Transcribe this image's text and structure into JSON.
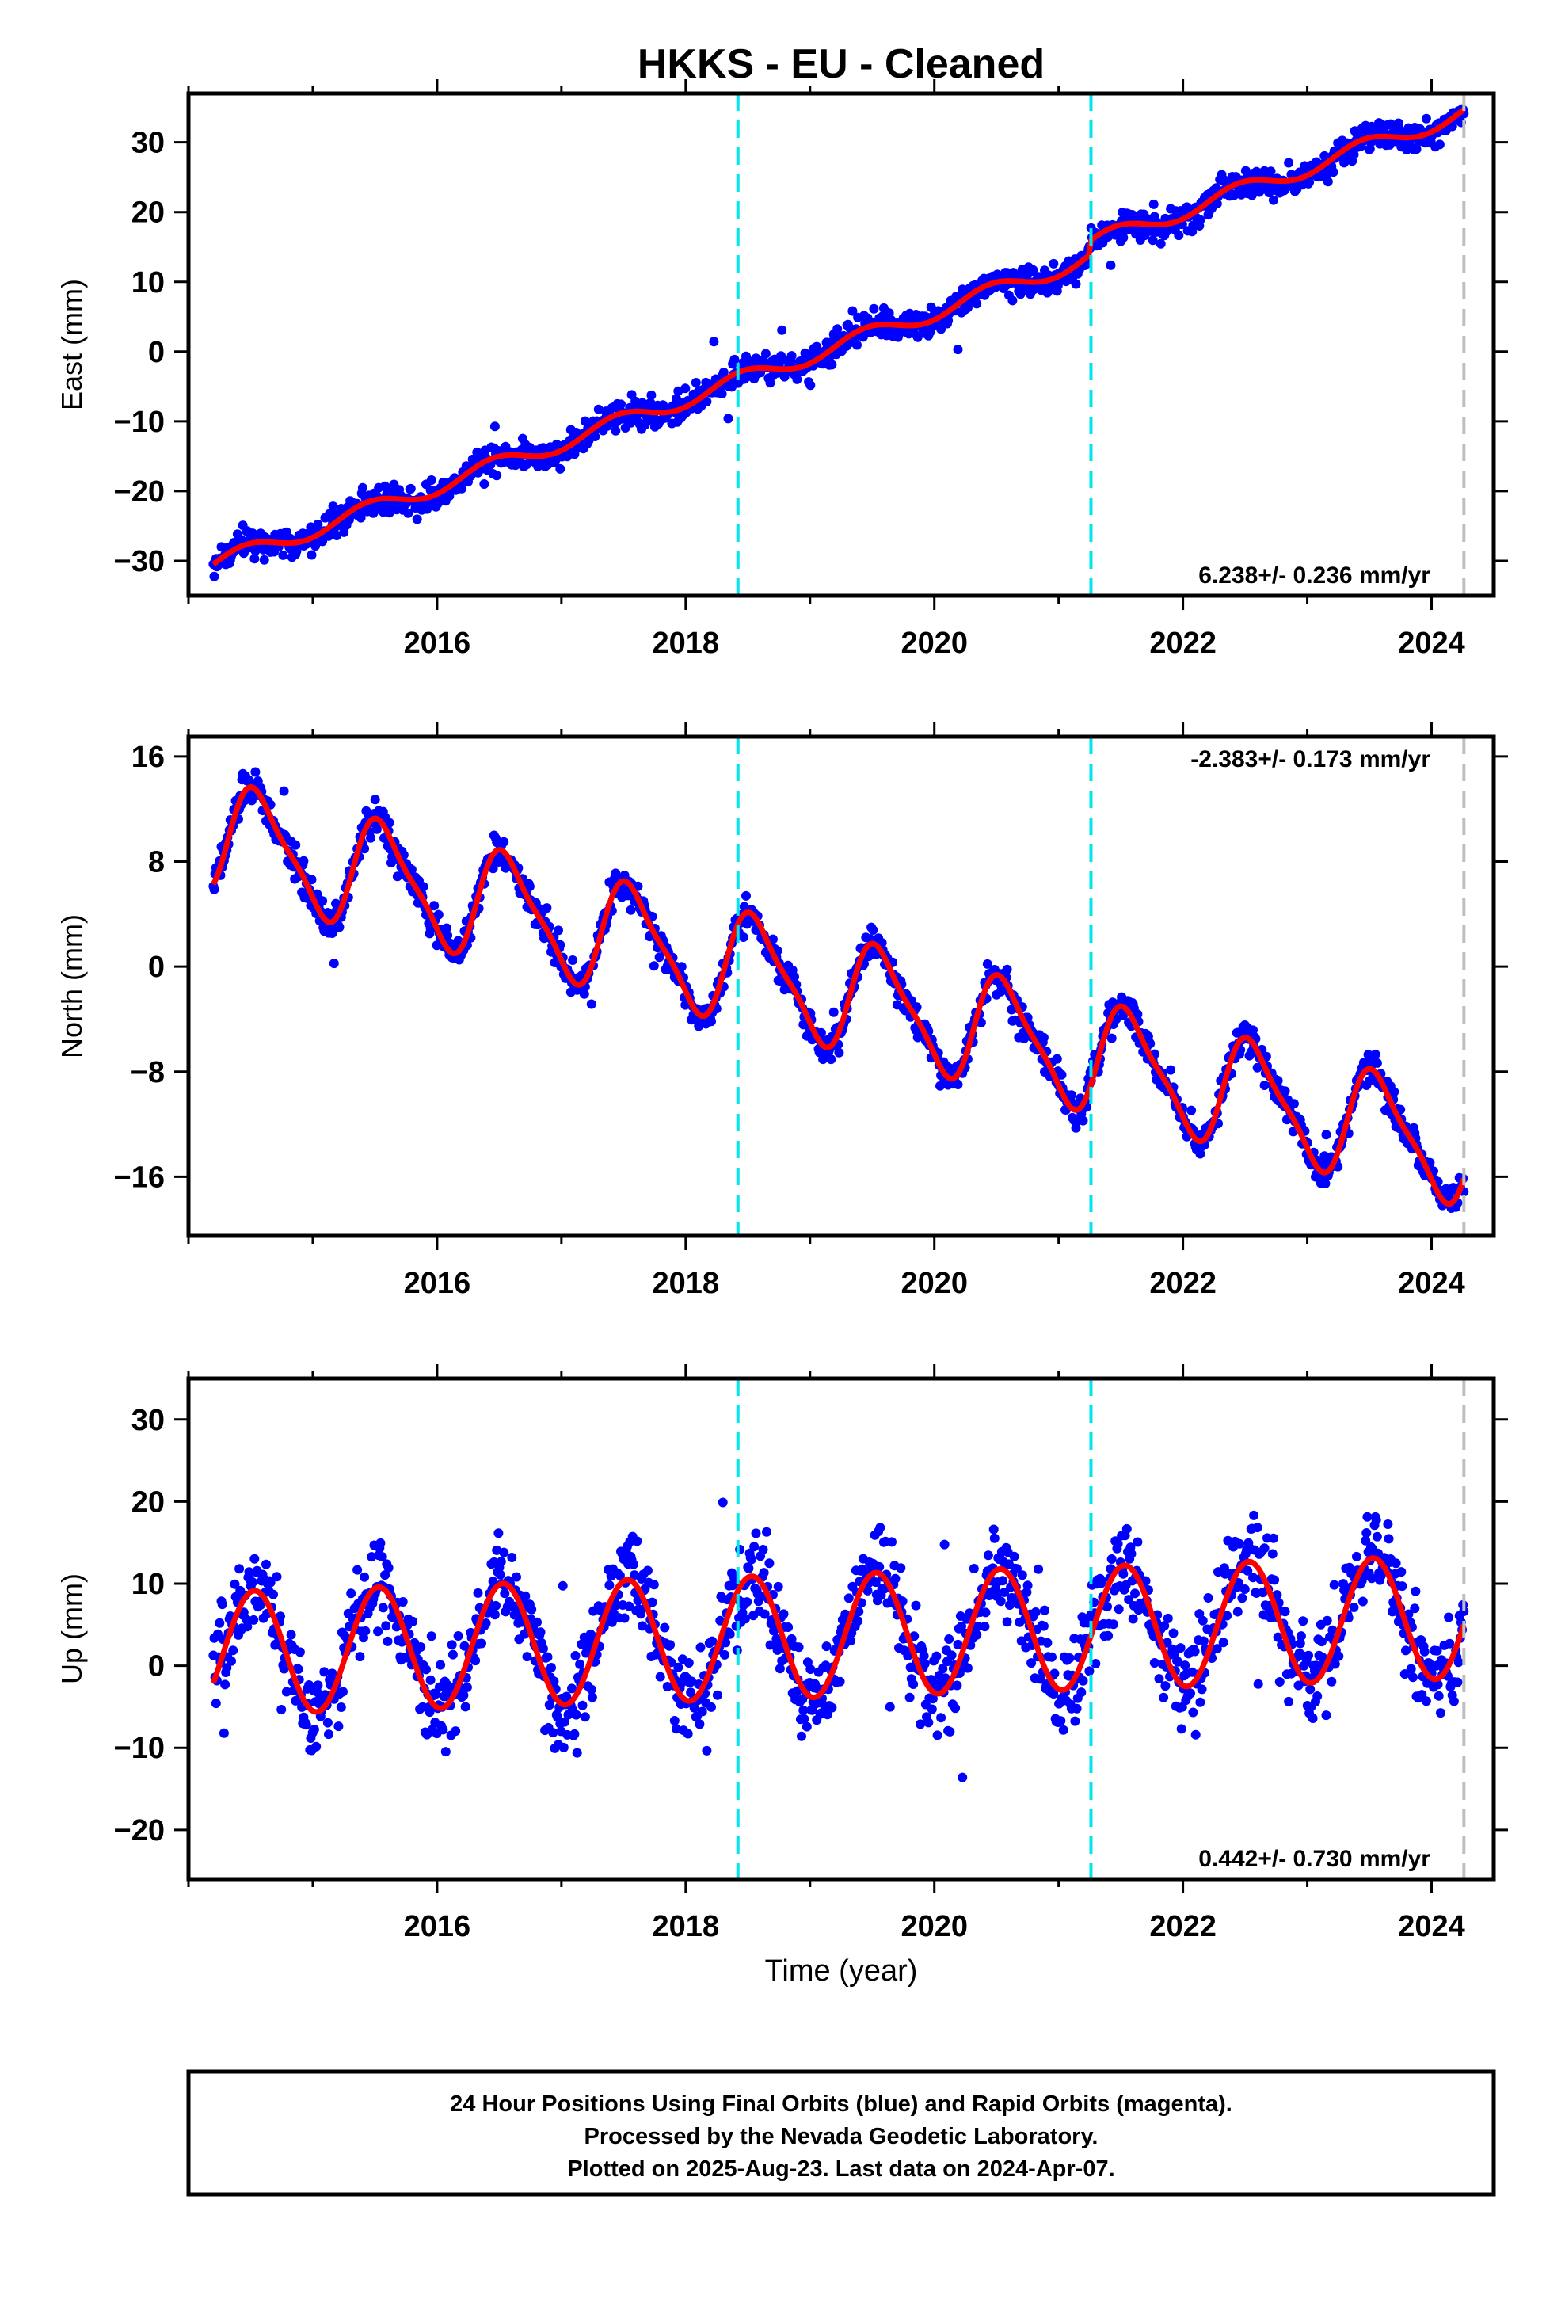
{
  "title": "HKKS  - EU - Cleaned",
  "xlabel": "Time (year)",
  "colors": {
    "final_orbits": "#0000ff",
    "model": "#ff0000",
    "break_line": "#00e5ee",
    "last_data_line": "#bebebe",
    "frame": "#000000"
  },
  "chart_data": [
    {
      "type": "scatter",
      "component": "East",
      "ylabel": "East (mm)",
      "rate_label": "6.238+/- 0.236 mm/yr",
      "rate_mm_per_yr": 6.238,
      "rate_sigma": 0.236,
      "xlim": [
        2014.0,
        2024.5
      ],
      "ylim": [
        -35,
        37
      ],
      "x_ticks": [
        2016,
        2018,
        2020,
        2022,
        2024
      ],
      "y_ticks": [
        -30,
        -20,
        -10,
        0,
        10,
        20,
        30
      ],
      "annual_amp": 1.2,
      "semiannual_amp": 0.0,
      "phase": 0.0,
      "scatter_sigma": 1.5,
      "offsets": [
        {
          "x": 2021.26,
          "dy": 2.0
        }
      ],
      "start_value": -30.5,
      "series": [
        {
          "name": "24 Hour Positions Using Final Orbits (blue)"
        },
        {
          "name": "Model"
        }
      ]
    },
    {
      "type": "scatter",
      "component": "North",
      "ylabel": "North (mm)",
      "rate_label": "-2.383+/- 0.173 mm/yr",
      "rate_mm_per_yr": -2.383,
      "rate_sigma": 0.173,
      "xlim": [
        2014.0,
        2024.5
      ],
      "ylim": [
        -20.5,
        17.5
      ],
      "x_ticks": [
        2016,
        2018,
        2020,
        2022,
        2024
      ],
      "y_ticks": [
        -16,
        -8,
        0,
        8,
        16
      ],
      "annual_amp": 4.0,
      "semiannual_amp": 1.0,
      "phase": 0.12,
      "scatter_sigma": 0.9,
      "offsets": [],
      "start_value": 10.0,
      "series": [
        {
          "name": "24 Hour Positions Using Final Orbits (blue)"
        },
        {
          "name": "Model"
        }
      ]
    },
    {
      "type": "scatter",
      "component": "Up",
      "ylabel": "Up (mm)",
      "rate_label": "0.442+/- 0.730 mm/yr",
      "rate_mm_per_yr": 0.442,
      "rate_sigma": 0.73,
      "xlim": [
        2014.0,
        2024.5
      ],
      "ylim": [
        -26,
        35
      ],
      "x_ticks": [
        2016,
        2018,
        2020,
        2022,
        2024
      ],
      "y_ticks": [
        -20,
        -10,
        0,
        10,
        20,
        30
      ],
      "annual_amp": 7.5,
      "semiannual_amp": 0.0,
      "phase": 0.08,
      "scatter_sigma": 4.0,
      "offsets": [],
      "start_value": 1.5,
      "series": [
        {
          "name": "24 Hour Positions Using Final Orbits (blue)"
        },
        {
          "name": "Model"
        }
      ]
    }
  ],
  "data_span": {
    "start": 2014.2,
    "end": 2024.26
  },
  "break_lines": [
    2018.42,
    2021.26
  ],
  "last_data_x": 2024.26,
  "footer": {
    "line1": "24 Hour Positions Using Final Orbits (blue) and Rapid Orbits (magenta).",
    "line2": "Processed by the Nevada Geodetic Laboratory.",
    "line3": "Plotted on 2025-Aug-23. Last data on 2024-Apr-07."
  }
}
